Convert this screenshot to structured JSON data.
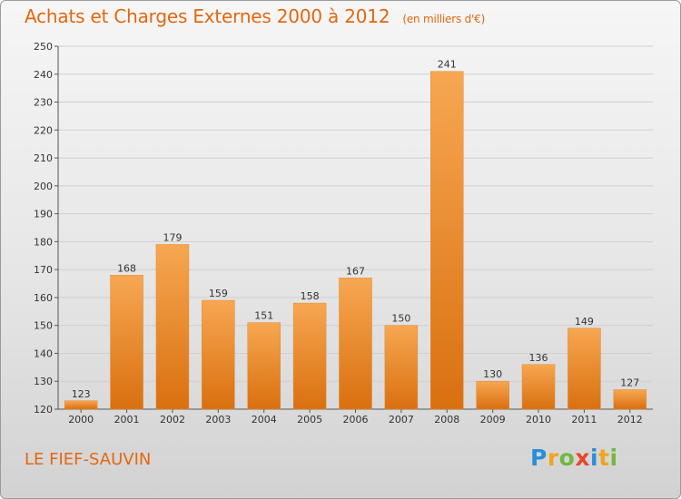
{
  "title": "Achats et Charges Externes 2000 à 2012",
  "unit": "(en milliers d'€)",
  "commune": "LE FIEF-SAUVIN",
  "logo": {
    "letters": [
      "P",
      "r",
      "o",
      "x",
      "i",
      "t",
      "i"
    ]
  },
  "colors": {
    "title": "#e4670f",
    "bar_light": "#f7a752",
    "bar_dark": "#d9700f"
  },
  "chart_data": {
    "type": "bar",
    "title": "Achats et Charges Externes 2000 à 2012",
    "categories": [
      "2000",
      "2001",
      "2002",
      "2003",
      "2004",
      "2005",
      "2006",
      "2007",
      "2008",
      "2009",
      "2010",
      "2011",
      "2012"
    ],
    "values": [
      123,
      168,
      179,
      159,
      151,
      158,
      167,
      150,
      241,
      130,
      136,
      149,
      127
    ],
    "ylim": [
      120,
      250
    ],
    "yticks": [
      120,
      130,
      140,
      150,
      160,
      170,
      180,
      190,
      200,
      210,
      220,
      230,
      240,
      250
    ],
    "grid": true,
    "legend": "none"
  }
}
